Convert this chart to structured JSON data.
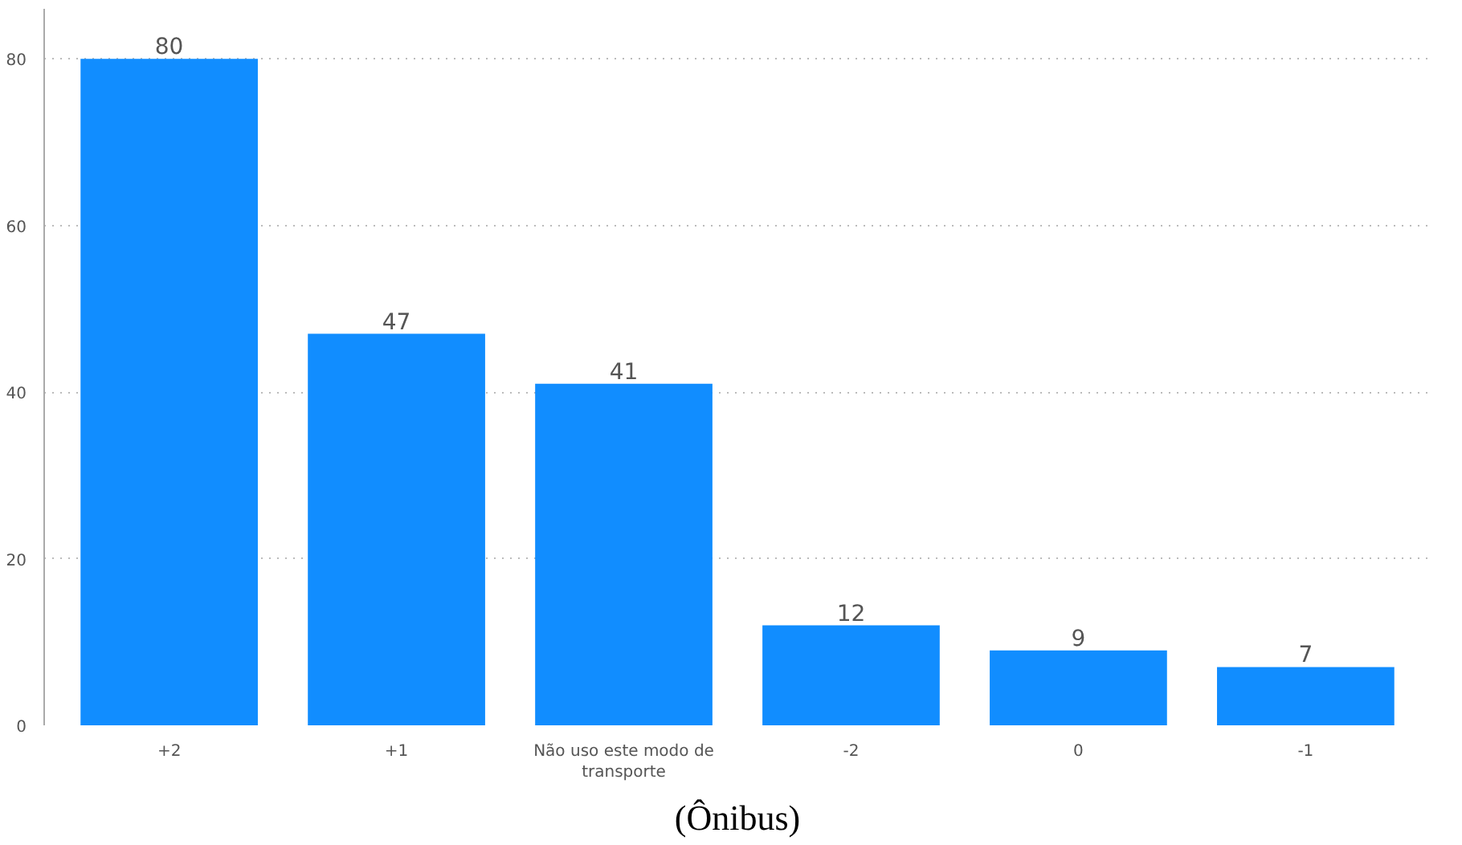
{
  "chart_data": {
    "type": "bar",
    "categories": [
      "+2",
      "+1",
      "Não uso este modo de transporte",
      "-2",
      "0",
      "-1"
    ],
    "values": [
      80,
      47,
      41,
      12,
      9,
      7
    ],
    "color": "#118dff",
    "ylim": [
      0,
      86
    ],
    "yticks": [
      0,
      20,
      40,
      60,
      80
    ],
    "grid": "y",
    "data_labels": true,
    "annotations": [
      "(Ônibus)"
    ]
  }
}
